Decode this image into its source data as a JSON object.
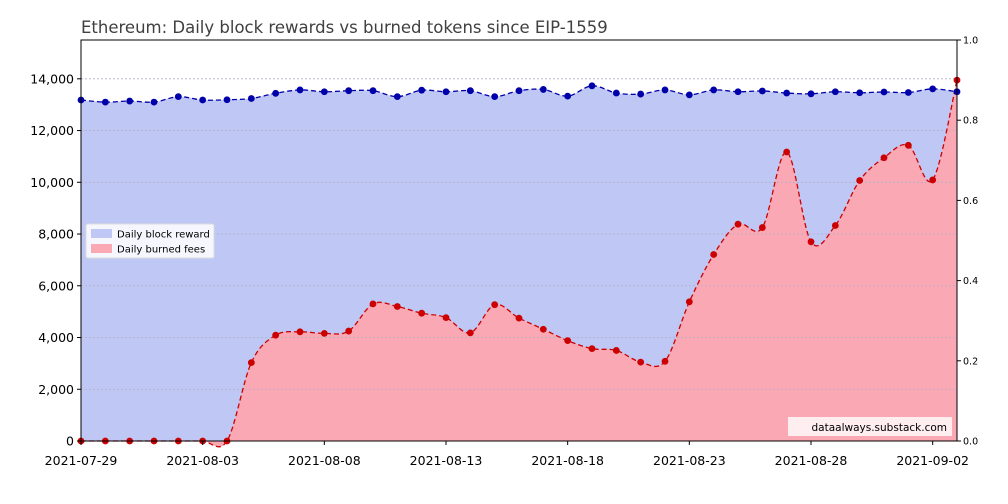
{
  "chart_data": {
    "type": "area",
    "title": "Ethereum: Daily block rewards vs burned tokens since EIP-1559",
    "xlabel": "",
    "ylabel": "",
    "ylim": [
      0,
      15500
    ],
    "yticks": [
      "0",
      "2,000",
      "4,000",
      "6,000",
      "8,000",
      "10,000",
      "12,000",
      "14,000"
    ],
    "ytick_values": [
      0,
      2000,
      4000,
      6000,
      8000,
      10000,
      12000,
      14000
    ],
    "right_axis": {
      "ylim": [
        0,
        1
      ],
      "ticks": [
        "0.0",
        "0.2",
        "0.4",
        "0.6",
        "0.8",
        "1.0"
      ],
      "tick_values": [
        0,
        0.2,
        0.4,
        0.6,
        0.8,
        1.0
      ]
    },
    "xticks": [
      "2021-07-29",
      "2021-08-03",
      "2021-08-08",
      "2021-08-13",
      "2021-08-18",
      "2021-08-23",
      "2021-08-28",
      "2021-09-02"
    ],
    "xtick_days": [
      0,
      5,
      10,
      15,
      20,
      25,
      30,
      35
    ],
    "x_days": [
      0,
      1,
      2,
      3,
      4,
      5,
      6,
      7,
      8,
      9,
      10,
      11,
      12,
      13,
      14,
      15,
      16,
      17,
      18,
      19,
      20,
      21,
      22,
      23,
      24,
      25,
      26,
      27,
      28,
      29,
      30,
      31,
      32,
      33,
      34,
      35,
      36
    ],
    "grid": true,
    "legend_position": "center-left",
    "watermark": "dataalways.substack.com",
    "series": [
      {
        "name": "Daily block reward",
        "color": "#0000aa",
        "fill": "#bfc7f5",
        "values": [
          13180,
          13100,
          13140,
          13100,
          13310,
          13180,
          13190,
          13240,
          13440,
          13570,
          13500,
          13540,
          13540,
          13310,
          13560,
          13500,
          13540,
          13310,
          13540,
          13590,
          13330,
          13730,
          13450,
          13410,
          13570,
          13380,
          13570,
          13500,
          13530,
          13450,
          13420,
          13500,
          13460,
          13490,
          13470,
          13610,
          13500
        ]
      },
      {
        "name": "Daily burned fees",
        "color": "#cc0000",
        "fill": "#f9a8b4",
        "values": [
          0,
          0,
          0,
          0,
          0,
          0,
          0,
          3030,
          4090,
          4220,
          4160,
          4250,
          5300,
          5200,
          4940,
          4770,
          4180,
          5270,
          4750,
          4320,
          3880,
          3570,
          3500,
          3050,
          3080,
          5380,
          7210,
          8380,
          8250,
          11170,
          7700,
          8330,
          10070,
          10950,
          11430,
          10090,
          13950
        ]
      }
    ]
  }
}
